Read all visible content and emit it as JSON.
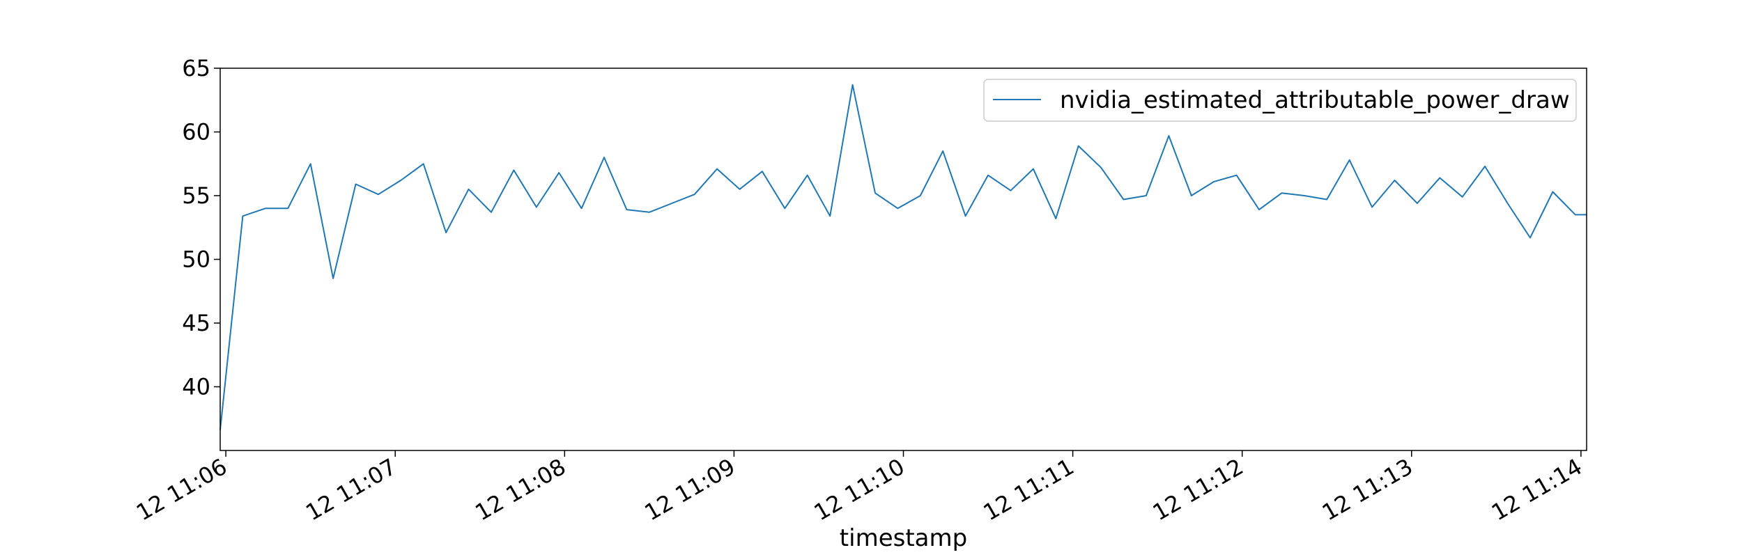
{
  "chart_data": {
    "type": "line",
    "title": "",
    "xlabel": "timestamp",
    "ylabel": "",
    "xlim": [
      "12 11:05:58",
      "12 11:14:02"
    ],
    "ylim": [
      35,
      65
    ],
    "y_ticks": [
      40,
      45,
      50,
      55,
      60,
      65
    ],
    "x_ticks": [
      "12 11:06",
      "12 11:07",
      "12 11:08",
      "12 11:09",
      "12 11:10",
      "12 11:11",
      "12 11:12",
      "12 11:13",
      "12 11:14"
    ],
    "x_tick_values": [
      "11:06:00",
      "11:07:00",
      "11:08:00",
      "11:09:00",
      "11:10:00",
      "11:11:00",
      "11:12:00",
      "11:13:00",
      "11:14:00"
    ],
    "grid": false,
    "legend_position": "top-right",
    "series": [
      {
        "name": "nvidia_estimated_attributable_power_draw",
        "color": "#1f77b4",
        "x": [
          "11:05:58",
          "11:06:06",
          "11:06:14",
          "11:06:22",
          "11:06:30",
          "11:06:38",
          "11:06:46",
          "11:06:54",
          "11:07:02",
          "11:07:10",
          "11:07:18",
          "11:07:26",
          "11:07:34",
          "11:07:42",
          "11:07:50",
          "11:07:58",
          "11:08:06",
          "11:08:14",
          "11:08:22",
          "11:08:30",
          "11:08:38",
          "11:08:46",
          "11:08:54",
          "11:09:02",
          "11:09:10",
          "11:09:18",
          "11:09:26",
          "11:09:34",
          "11:09:42",
          "11:09:50",
          "11:09:58",
          "11:10:06",
          "11:10:14",
          "11:10:22",
          "11:10:30",
          "11:10:38",
          "11:10:46",
          "11:10:54",
          "11:11:02",
          "11:11:10",
          "11:11:18",
          "11:11:26",
          "11:11:34",
          "11:11:42",
          "11:11:50",
          "11:11:58",
          "11:12:06",
          "11:12:14",
          "11:12:22",
          "11:12:30",
          "11:12:38",
          "11:12:46",
          "11:12:54",
          "11:13:02",
          "11:13:10",
          "11:13:18",
          "11:13:26",
          "11:13:34",
          "11:13:42",
          "11:13:50",
          "11:13:58",
          "11:14:02"
        ],
        "values": [
          36.6,
          53.4,
          54.0,
          54.0,
          57.5,
          48.5,
          55.9,
          55.1,
          56.2,
          57.5,
          52.1,
          55.5,
          53.7,
          57.0,
          54.1,
          56.8,
          54.0,
          58.0,
          53.9,
          53.7,
          54.4,
          55.1,
          57.1,
          55.5,
          56.9,
          54.0,
          56.6,
          53.4,
          63.7,
          55.2,
          54.0,
          55.0,
          58.5,
          53.4,
          56.6,
          55.4,
          57.1,
          53.2,
          58.9,
          57.2,
          54.7,
          55.0,
          59.7,
          55.0,
          56.1,
          56.6,
          53.9,
          55.2,
          55.0,
          54.7,
          57.8,
          54.1,
          56.2,
          54.4,
          56.4,
          54.9,
          57.3,
          54.4,
          51.7,
          55.3,
          53.5,
          53.5
        ]
      }
    ]
  }
}
